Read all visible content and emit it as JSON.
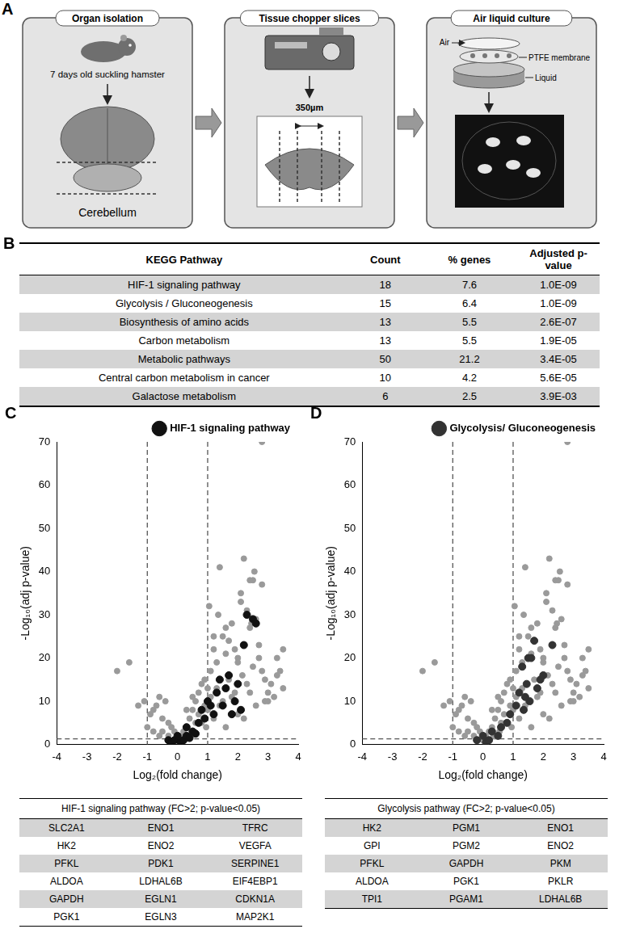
{
  "panel_a": {
    "letter": "A",
    "steps": [
      {
        "title": "Organ isolation",
        "labels": [
          "7 days old suckling hamster",
          "Cerebellum"
        ]
      },
      {
        "title": "Tissue chopper slices",
        "labels": [
          "350µm"
        ]
      },
      {
        "title": "Air liquid culture",
        "labels": [
          "Air",
          "PTFE membrane",
          "Liquid"
        ]
      }
    ]
  },
  "panel_b": {
    "letter": "B",
    "table": {
      "columns": [
        "KEGG Pathway",
        "Count",
        "% genes",
        "Adjusted p-value"
      ],
      "rows": [
        [
          "HIF-1 signaling pathway",
          18,
          7.6,
          "1.0E-09"
        ],
        [
          "Glycolysis / Gluconeogenesis",
          15,
          6.4,
          "1.0E-09"
        ],
        [
          "Biosynthesis of amino acids",
          13,
          5.5,
          "2.6E-07"
        ],
        [
          "Carbon metabolism",
          13,
          5.5,
          "1.9E-05"
        ],
        [
          "Metabolic pathways",
          50,
          21.2,
          "3.4E-05"
        ],
        [
          "Central carbon metabolism in cancer",
          10,
          4.2,
          "5.6E-05"
        ],
        [
          "Galactose metabolism",
          6,
          2.5,
          "3.9E-03"
        ]
      ]
    }
  },
  "chart_data": [
    {
      "letter": "C",
      "type": "scatter",
      "x_label": "Log₂(fold change)",
      "y_label": "-Log₁₀(adj p-value)",
      "xlim": [
        -4,
        4
      ],
      "xticks": [
        -4,
        -3,
        -2,
        -1,
        0,
        1,
        2,
        3,
        4
      ],
      "ylim": [
        0,
        70
      ],
      "yticks": [
        0,
        10,
        20,
        30,
        40,
        50,
        60,
        70
      ],
      "grid": false,
      "legend": "top right",
      "vlines": [
        -1,
        1
      ],
      "hline": 1.3,
      "series": [
        {
          "color": "#9a9a9a",
          "marker": "circle",
          "x": [
            -2.0,
            -1.6,
            -1.3,
            -1.1,
            -0.9,
            -0.8,
            -0.7,
            -0.6,
            -0.5,
            -0.4,
            -0.3,
            -0.2,
            -0.1,
            0.1,
            0.2,
            0.3,
            0.4,
            0.5,
            0.6,
            0.7,
            0.8,
            0.9,
            1.0,
            1.1,
            1.2,
            1.3,
            1.4,
            1.5,
            1.6,
            1.7,
            1.8,
            1.9,
            2.0,
            2.1,
            2.2,
            2.3,
            2.4,
            2.5,
            2.6,
            2.7,
            2.8,
            2.9,
            3.0,
            3.1,
            3.2,
            3.3,
            3.5,
            0.3,
            0.5,
            0.7,
            0.9,
            1.1,
            1.3,
            1.5,
            1.7,
            1.9,
            2.1,
            2.3,
            2.5,
            2.7,
            -0.5,
            -0.3,
            0.2,
            0.6,
            1.0,
            1.4,
            1.8,
            2.2,
            2.6,
            3.0,
            1.2,
            1.6,
            2.0,
            2.4,
            2.8,
            1.35,
            2.15,
            2.45,
            2.55,
            2.8,
            0.4,
            0.8,
            1.2,
            1.6,
            2.0,
            2.4,
            2.9,
            3.4,
            3.5,
            1.05,
            -1.0,
            -0.8,
            -0.6,
            0.0,
            0.15,
            0.35,
            0.55,
            0.75,
            0.95,
            3.3
          ],
          "values": [
            17,
            19,
            9,
            10,
            7,
            8,
            9,
            11,
            6,
            10,
            5,
            4,
            3,
            2,
            3,
            4,
            6,
            8,
            10,
            12,
            14,
            15,
            13,
            17,
            22,
            19,
            41,
            25,
            21,
            24,
            28,
            22,
            20,
            33,
            43,
            31,
            27,
            38,
            29,
            23,
            17,
            15,
            12,
            14,
            11,
            16,
            13,
            8,
            11,
            7,
            9,
            11,
            13,
            10,
            15,
            12,
            35,
            14,
            18,
            20,
            3,
            2,
            1,
            5,
            8,
            9,
            11,
            6,
            9,
            10,
            25,
            27,
            19,
            38,
            37,
            30,
            16,
            28,
            40,
            70,
            2,
            5,
            6,
            4,
            7,
            12,
            10,
            17,
            22,
            32,
            4,
            3,
            2,
            1,
            1,
            2,
            3,
            5,
            4,
            20
          ]
        },
        {
          "name": "HIF-1 signaling pathway",
          "color": "#111111",
          "marker": "circle",
          "x": [
            -0.3,
            -0.2,
            -0.1,
            0.0,
            0.1,
            0.2,
            0.3,
            0.4,
            0.5,
            0.6,
            0.7,
            0.8,
            0.9,
            1.0,
            1.1,
            1.2,
            1.3,
            1.4,
            1.5,
            1.6,
            1.7,
            1.8,
            1.9,
            2.0,
            2.1,
            2.2,
            2.3,
            2.5,
            2.6,
            0.3
          ],
          "values": [
            1,
            0.5,
            1,
            2,
            0.5,
            1,
            2,
            1.5,
            3,
            2.5,
            5,
            8,
            6,
            10,
            9,
            7,
            12,
            15,
            9,
            13,
            16,
            7,
            10,
            14,
            8,
            23,
            30,
            29,
            28,
            4
          ]
        }
      ]
    },
    {
      "letter": "D",
      "type": "scatter",
      "x_label": "Log₂(fold change)",
      "y_label": "-Log₁₀(adj p-value)",
      "xlim": [
        -4,
        4
      ],
      "xticks": [
        -4,
        -3,
        -2,
        -1,
        0,
        1,
        2,
        3,
        4
      ],
      "ylim": [
        0,
        70
      ],
      "yticks": [
        0,
        10,
        20,
        30,
        40,
        50,
        60,
        70
      ],
      "grid": false,
      "legend": "top right",
      "vlines": [
        -1,
        1
      ],
      "hline": 1.3,
      "series": [
        {
          "color": "#9a9a9a",
          "marker": "circle",
          "x": [
            -2.0,
            -1.6,
            -1.3,
            -1.1,
            -0.9,
            -0.8,
            -0.7,
            -0.6,
            -0.5,
            -0.4,
            -0.3,
            -0.2,
            -0.1,
            0.1,
            0.2,
            0.3,
            0.4,
            0.5,
            0.6,
            0.7,
            0.8,
            0.9,
            1.0,
            1.1,
            1.2,
            1.3,
            1.4,
            1.5,
            1.6,
            1.7,
            1.8,
            1.9,
            2.0,
            2.1,
            2.2,
            2.3,
            2.4,
            2.5,
            2.6,
            2.7,
            2.8,
            2.9,
            3.0,
            3.1,
            3.2,
            3.3,
            3.5,
            0.3,
            0.5,
            0.7,
            0.9,
            1.1,
            1.3,
            1.5,
            1.7,
            1.9,
            2.1,
            2.3,
            2.5,
            2.7,
            -0.5,
            -0.3,
            0.2,
            0.6,
            1.0,
            1.4,
            1.8,
            2.2,
            2.6,
            3.0,
            1.2,
            1.6,
            2.0,
            2.4,
            2.8,
            1.35,
            2.15,
            2.45,
            2.55,
            2.8,
            0.4,
            0.8,
            1.2,
            1.6,
            2.0,
            2.4,
            2.9,
            3.4,
            3.5,
            1.05,
            -1.0,
            -0.8,
            -0.6,
            0.0,
            0.15,
            0.35,
            0.55,
            0.75,
            0.95,
            3.3
          ],
          "values": [
            17,
            19,
            9,
            10,
            7,
            8,
            9,
            11,
            6,
            10,
            5,
            4,
            3,
            2,
            3,
            4,
            6,
            8,
            10,
            12,
            14,
            15,
            13,
            17,
            22,
            19,
            41,
            25,
            21,
            24,
            28,
            22,
            20,
            33,
            43,
            31,
            27,
            38,
            29,
            23,
            17,
            15,
            12,
            14,
            11,
            16,
            13,
            8,
            11,
            7,
            9,
            11,
            13,
            10,
            15,
            12,
            35,
            14,
            18,
            20,
            3,
            2,
            1,
            5,
            8,
            9,
            11,
            6,
            9,
            10,
            25,
            27,
            19,
            38,
            37,
            30,
            16,
            28,
            40,
            70,
            2,
            5,
            6,
            4,
            7,
            12,
            10,
            17,
            22,
            32,
            4,
            3,
            2,
            1,
            1,
            2,
            3,
            5,
            4,
            20
          ]
        },
        {
          "name": "Glycolysis/ Gluconeogenesis",
          "color": "#333333",
          "marker": "circle",
          "x": [
            -0.2,
            0.0,
            0.1,
            0.2,
            0.3,
            0.5,
            0.6,
            0.8,
            0.9,
            1.1,
            1.2,
            1.3,
            1.4,
            1.5,
            1.6,
            1.7,
            1.8,
            1.9,
            2.0,
            2.3,
            1.45,
            1.55,
            1.35
          ],
          "values": [
            1,
            2,
            0.5,
            1,
            3,
            2,
            4,
            5,
            7,
            9,
            12,
            18,
            11,
            20,
            20,
            24,
            13,
            15,
            16,
            23,
            14,
            10,
            8
          ]
        }
      ]
    }
  ],
  "gene_tables": [
    {
      "title": "HIF-1 signaling pathway (FC>2; p-value<0.05)",
      "rows": [
        [
          "SLC2A1",
          "ENO1",
          "TFRC"
        ],
        [
          "HK2",
          "ENO2",
          "VEGFA"
        ],
        [
          "PFKL",
          "PDK1",
          "SERPINE1"
        ],
        [
          "ALDOA",
          "LDHAL6B",
          "EIF4EBP1"
        ],
        [
          "GAPDH",
          "EGLN1",
          "CDKN1A"
        ],
        [
          "PGK1",
          "EGLN3",
          "MAP2K1"
        ]
      ]
    },
    {
      "title": "Glycolysis pathway (FC>2; p-value<0.05)",
      "rows": [
        [
          "HK2",
          "PGM1",
          "ENO1"
        ],
        [
          "GPI",
          "PGM2",
          "ENO2"
        ],
        [
          "PFKL",
          "GAPDH",
          "PKM"
        ],
        [
          "ALDOA",
          "PGK1",
          "PKLR"
        ],
        [
          "TPI1",
          "PGAM1",
          "LDHAL6B"
        ]
      ]
    }
  ]
}
